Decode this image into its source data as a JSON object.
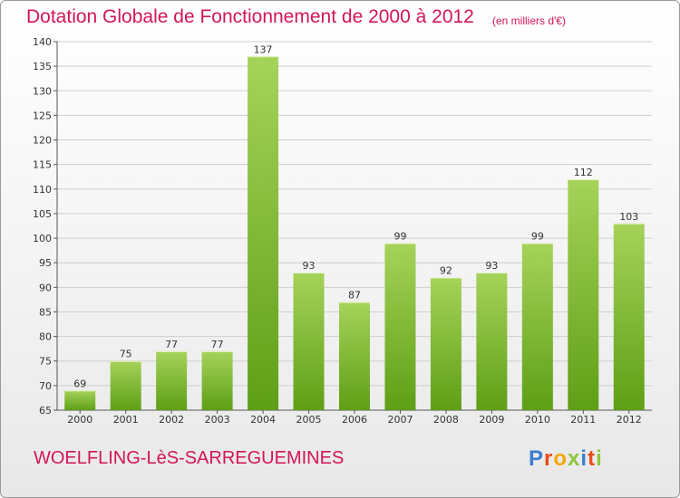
{
  "header": {
    "title": "Dotation Globale de Fonctionnement de 2000 à 2012",
    "unit": "(en milliers d'€)"
  },
  "footer": {
    "commune": "WOELFLING-LèS-SARREGUEMINES",
    "logo": "Proxiti"
  },
  "colors": {
    "title": "#d4145a",
    "bar_light": "#a6d35a",
    "bar_dark": "#5e9f16",
    "grid": "#cfcfcf"
  },
  "chart_data": {
    "type": "bar",
    "title": "Dotation Globale de Fonctionnement de 2000 à 2012",
    "subtitle": "(en milliers d'€)",
    "categories": [
      "2000",
      "2001",
      "2002",
      "2003",
      "2004",
      "2005",
      "2006",
      "2007",
      "2008",
      "2009",
      "2010",
      "2011",
      "2012"
    ],
    "values": [
      69,
      75,
      77,
      77,
      137,
      93,
      87,
      99,
      92,
      93,
      99,
      112,
      103
    ],
    "ylim": [
      65,
      140
    ],
    "yticks": [
      65,
      70,
      75,
      80,
      85,
      90,
      95,
      100,
      105,
      110,
      115,
      120,
      125,
      130,
      135,
      140
    ],
    "grid": true,
    "xlabel": "",
    "ylabel": ""
  }
}
